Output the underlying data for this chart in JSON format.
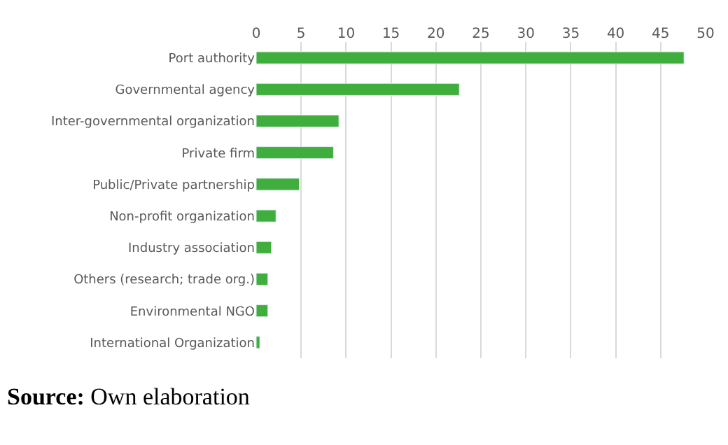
{
  "chart_data": {
    "type": "bar",
    "orientation": "horizontal",
    "categories": [
      "Port authority",
      "Governmental agency",
      "Inter-governmental organization",
      "Private firm",
      "Public/Private partnership",
      "Non-profit organization",
      "Industry association",
      "Others (research; trade org.)",
      "Environmental NGO",
      "International Organization"
    ],
    "values": [
      47.6,
      22.6,
      9.2,
      8.6,
      4.8,
      2.2,
      1.7,
      1.3,
      1.3,
      0.4
    ],
    "color": "#3fae3c",
    "xlim": [
      0,
      50
    ],
    "xticks": [
      0,
      5,
      10,
      15,
      20,
      25,
      30,
      35,
      40,
      45,
      50
    ],
    "grid": "x",
    "annotations": [
      "Source: Own elaboration"
    ]
  }
}
